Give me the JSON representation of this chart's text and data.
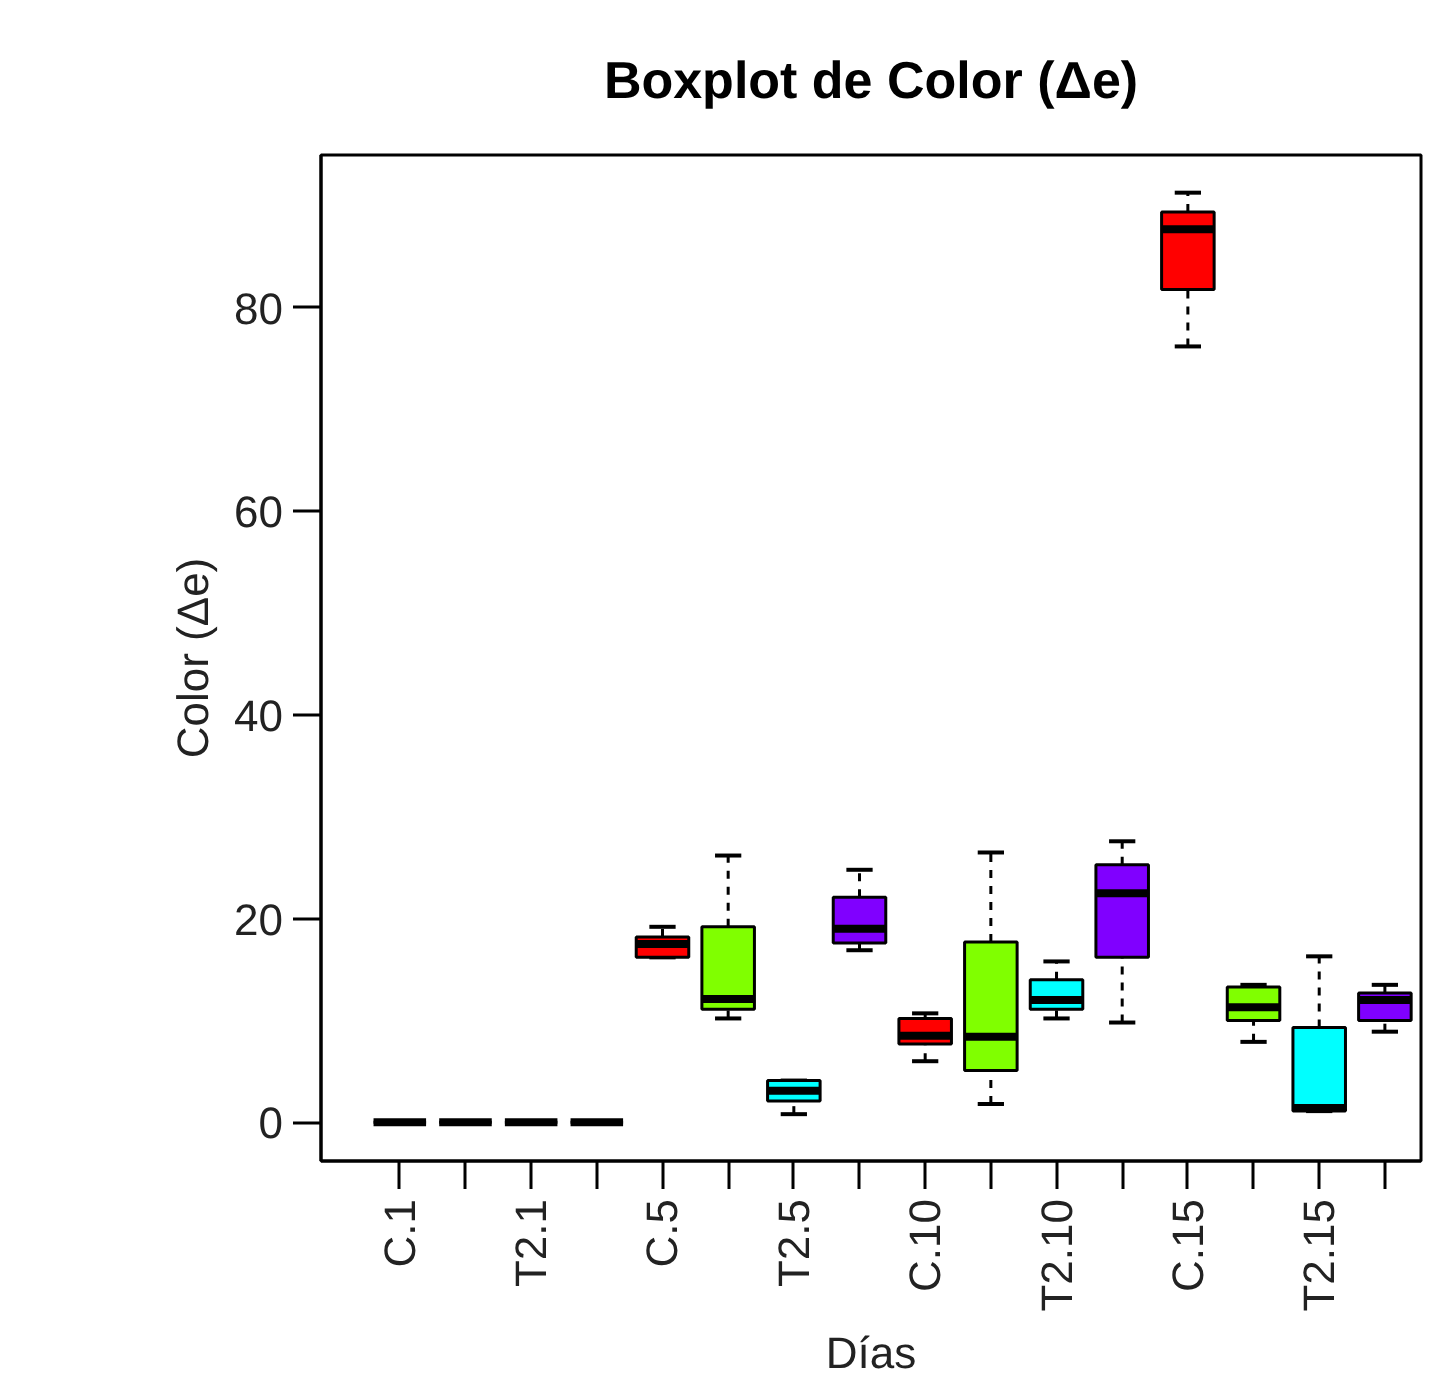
{
  "chart_data": {
    "type": "box",
    "title": "Boxplot de Color (Δe)",
    "xlabel": "Días",
    "ylabel": "Color (Δe)",
    "categories": [
      "C.1",
      null,
      "T2.1",
      null,
      "C.5",
      null,
      "T2.5",
      null,
      "C.10",
      null,
      "T2.10",
      null,
      "C.15",
      null,
      "T2.15",
      null
    ],
    "colors": [
      "#000000",
      "#000000",
      "#000000",
      "#000000",
      "#ff0000",
      "#80ff00",
      "#00ffff",
      "#8000ff",
      "#ff0000",
      "#80ff00",
      "#00ffff",
      "#8000ff",
      "#ff0000",
      "#80ff00",
      "#00ffff",
      "#8000ff"
    ],
    "boxes": [
      {
        "low": 0,
        "q1": 0,
        "median": 0,
        "q3": 0,
        "high": 0
      },
      {
        "low": 0,
        "q1": 0,
        "median": 0,
        "q3": 0,
        "high": 0
      },
      {
        "low": 0,
        "q1": 0,
        "median": 0,
        "q3": 0,
        "high": 0
      },
      {
        "low": 0,
        "q1": 0,
        "median": 0,
        "q3": 0,
        "high": 0
      },
      {
        "low": 16.2,
        "q1": 16.2,
        "median": 17.5,
        "q3": 18.2,
        "high": 19.2
      },
      {
        "low": 10.2,
        "q1": 11.1,
        "median": 12.1,
        "q3": 19.2,
        "high": 26.2
      },
      {
        "low": 0.8,
        "q1": 2.1,
        "median": 3.1,
        "q3": 4.1,
        "high": 4.1
      },
      {
        "low": 16.9,
        "q1": 17.6,
        "median": 19.0,
        "q3": 22.1,
        "high": 24.8
      },
      {
        "low": 6.0,
        "q1": 7.7,
        "median": 8.5,
        "q3": 10.2,
        "high": 10.7
      },
      {
        "low": 1.8,
        "q1": 5.1,
        "median": 8.4,
        "q3": 17.7,
        "high": 26.5
      },
      {
        "low": 10.2,
        "q1": 11.1,
        "median": 12.0,
        "q3": 14.0,
        "high": 15.8
      },
      {
        "low": 9.8,
        "q1": 16.2,
        "median": 22.5,
        "q3": 25.3,
        "high": 27.6
      },
      {
        "low": 76.2,
        "q1": 81.8,
        "median": 87.7,
        "q3": 89.4,
        "high": 91.3
      },
      {
        "low": 7.9,
        "q1": 10.0,
        "median": 11.3,
        "q3": 13.3,
        "high": 13.5
      },
      {
        "low": 1.1,
        "q1": 1.1,
        "median": 1.4,
        "q3": 9.3,
        "high": 16.3
      },
      {
        "low": 8.9,
        "q1": 10.0,
        "median": 12.0,
        "q3": 12.7,
        "high": 13.5
      }
    ],
    "ylim": [
      -3.8,
      95
    ],
    "yticks": [
      0,
      20,
      40,
      60,
      80
    ],
    "grid": false
  }
}
